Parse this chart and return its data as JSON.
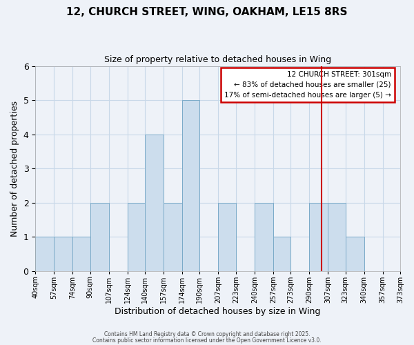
{
  "title": "12, CHURCH STREET, WING, OAKHAM, LE15 8RS",
  "subtitle": "Size of property relative to detached houses in Wing",
  "xlabel": "Distribution of detached houses by size in Wing",
  "ylabel": "Number of detached properties",
  "bin_edges": [
    40,
    57,
    74,
    90,
    107,
    124,
    140,
    157,
    174,
    190,
    207,
    223,
    240,
    257,
    273,
    290,
    307,
    323,
    340,
    357,
    373
  ],
  "bar_heights": [
    1,
    1,
    1,
    2,
    0,
    2,
    4,
    2,
    5,
    0,
    2,
    0,
    2,
    1,
    0,
    2,
    2,
    1,
    0,
    0
  ],
  "bar_color": "#ccdded",
  "bar_edgecolor": "#7aaac8",
  "grid_color": "#c8d8e8",
  "bg_color": "#eef2f8",
  "vline_x": 301,
  "vline_color": "#cc0000",
  "ylim": [
    0,
    6
  ],
  "tick_labels": [
    "40sqm",
    "57sqm",
    "74sqm",
    "90sqm",
    "107sqm",
    "124sqm",
    "140sqm",
    "157sqm",
    "174sqm",
    "190sqm",
    "207sqm",
    "223sqm",
    "240sqm",
    "257sqm",
    "273sqm",
    "290sqm",
    "307sqm",
    "323sqm",
    "340sqm",
    "357sqm",
    "373sqm"
  ],
  "annotation_title": "12 CHURCH STREET: 301sqm",
  "annotation_line1": "← 83% of detached houses are smaller (25)",
  "annotation_line2": "17% of semi-detached houses are larger (5) →",
  "annotation_box_color": "#cc0000",
  "footnote1": "Contains HM Land Registry data © Crown copyright and database right 2025.",
  "footnote2": "Contains public sector information licensed under the Open Government Licence v3.0."
}
